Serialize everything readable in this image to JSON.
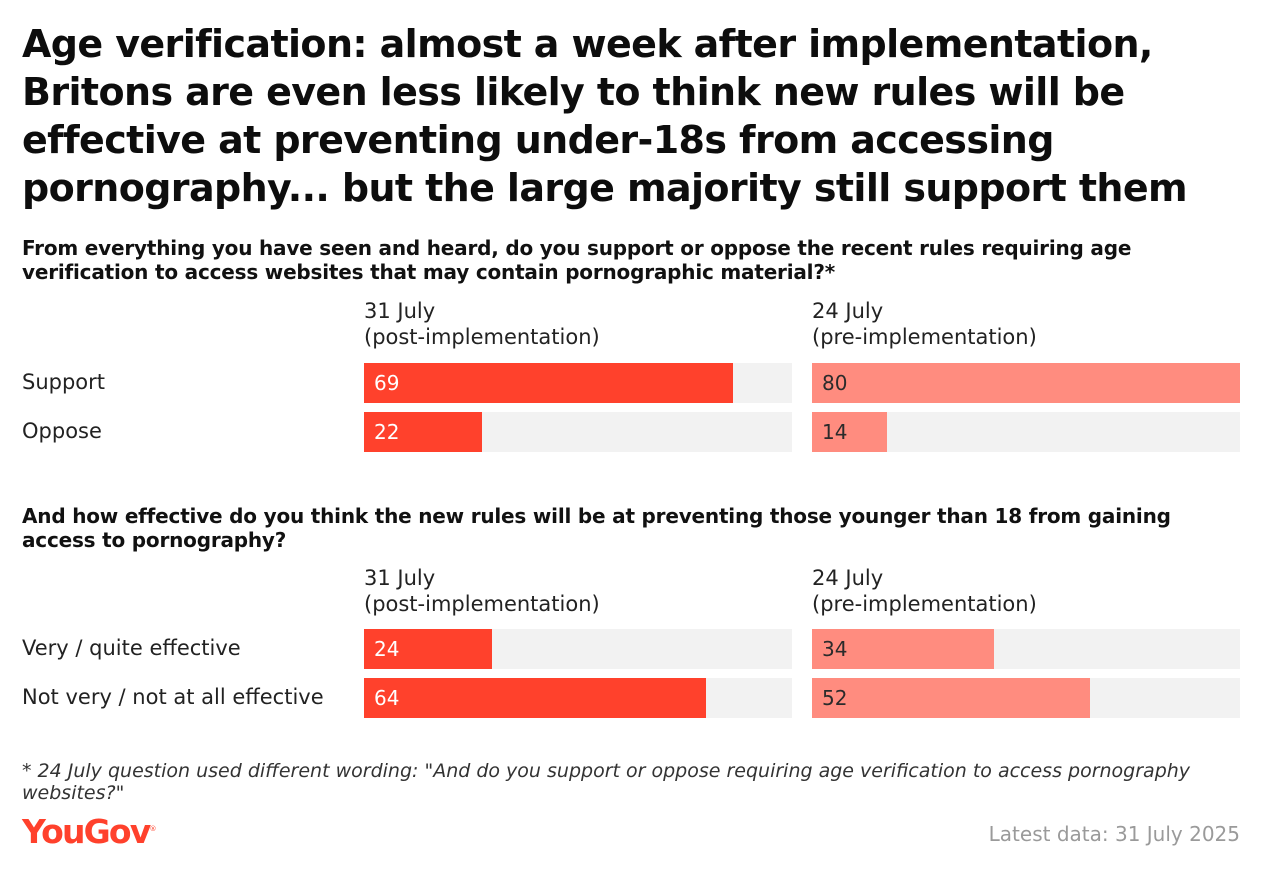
{
  "title": "Age verification: almost a week after implementation, Britons are even less likely to think new rules will be effective at preventing under-18s from accessing pornography... but the large majority still support them",
  "colors": {
    "post": "#ff412c",
    "pre": "#ff8c7f",
    "track": "#f2f2f2",
    "label_on_post": "#ffffff",
    "label_on_pre": "#2b2b2b"
  },
  "chart_data": [
    {
      "type": "bar",
      "title": "From everything you have seen and heard, do you support or oppose the recent rules requiring age verification to access websites that may contain pornographic material?*",
      "columns": [
        {
          "line1": "31 July",
          "line2": "(post-implementation)"
        },
        {
          "line1": "24 July",
          "line2": "(pre-implementation)"
        }
      ],
      "categories": [
        "Support",
        "Oppose"
      ],
      "series": [
        {
          "values": [
            69,
            22
          ]
        },
        {
          "values": [
            80,
            14
          ]
        }
      ],
      "xlim": [
        0,
        80
      ]
    },
    {
      "type": "bar",
      "title": "And how effective do you think the new rules will be at preventing those younger than 18 from gaining access to pornography?",
      "columns": [
        {
          "line1": "31 July",
          "line2": "(post-implementation)"
        },
        {
          "line1": "24 July",
          "line2": "(pre-implementation)"
        }
      ],
      "categories": [
        "Very / quite effective",
        "Not very / not at all effective"
      ],
      "series": [
        {
          "values": [
            24,
            64
          ]
        },
        {
          "values": [
            34,
            52
          ]
        }
      ],
      "xlim": [
        0,
        80
      ]
    }
  ],
  "footnote": "* 24 July question used different wording: \"And do you support or oppose requiring age verification to access pornography websites?\"",
  "brand": {
    "name": "YouGov",
    "mark": "®"
  },
  "latest": "Latest data: 31 July 2025"
}
